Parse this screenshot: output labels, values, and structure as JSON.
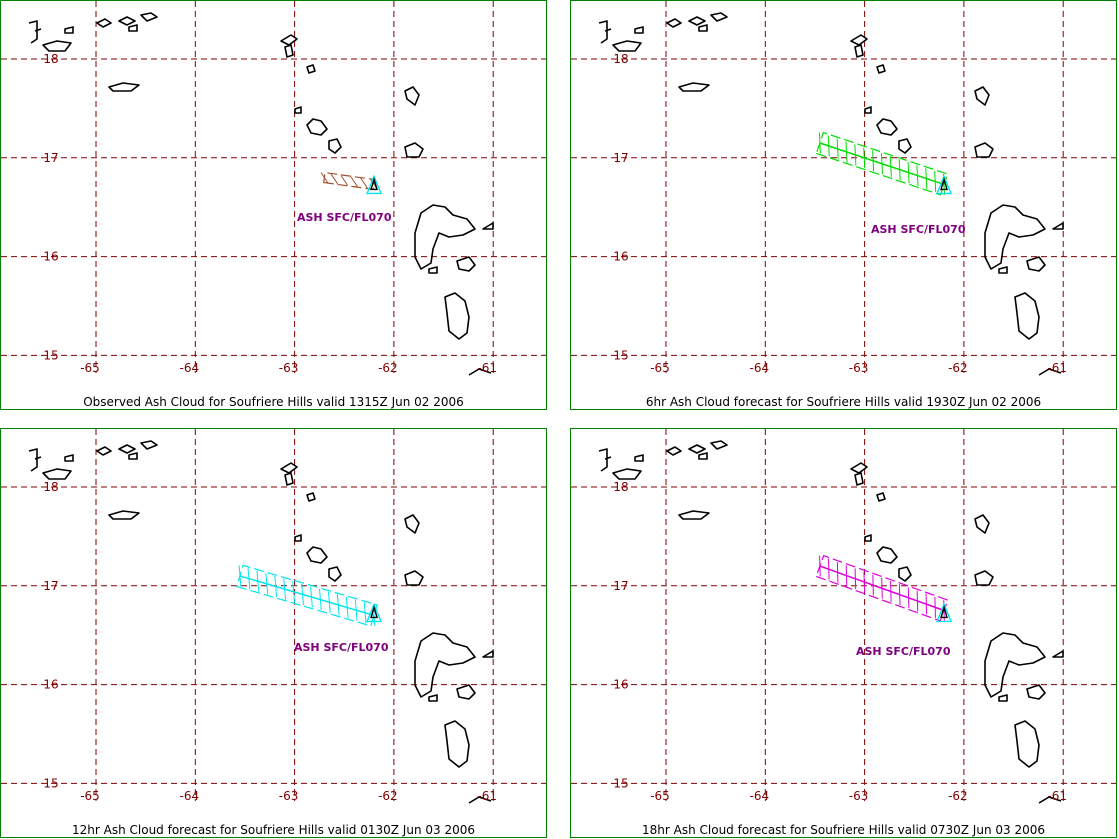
{
  "grid": {
    "lon_labels": [
      "-65",
      "-64",
      "-63",
      "-62",
      "-61"
    ],
    "lat_labels": [
      "18",
      "17",
      "16",
      "15"
    ],
    "grid_color": "#800000",
    "border_color": "#008000"
  },
  "panels": [
    {
      "caption": "Observed Ash Cloud for Soufriere  Hills valid 1315Z Jun 02 2006",
      "label": "ASH SFC/FL070",
      "label_color": "#800080",
      "cloud_color": "#a0522d",
      "cloud_lon_start": -62.7,
      "cloud_lat_start": 16.8,
      "cloud_lon_end": -62.2,
      "cloud_lat_end": 16.73
    },
    {
      "caption": "6hr Ash Cloud forecast for Soufriere  Hills valid 1930Z Jun 02 2006",
      "label": "ASH SFC/FL070",
      "label_color": "#800080",
      "cloud_color": "#00dd00",
      "cloud_lon_start": -63.45,
      "cloud_lat_start": 17.15,
      "cloud_lon_end": -62.2,
      "cloud_lat_end": 16.73
    },
    {
      "caption": "12hr Ash Cloud forecast for Soufriere  Hills valid 0130Z Jun 03 2006",
      "label": "ASH SFC/FL070",
      "label_color": "#800080",
      "cloud_color": "#00e5ee",
      "cloud_lon_start": -63.55,
      "cloud_lat_start": 17.1,
      "cloud_lon_end": -62.2,
      "cloud_lat_end": 16.7
    },
    {
      "caption": "18hr Ash Cloud forecast for Soufriere  Hills valid 0730Z Jun 03 2006",
      "label": "ASH SFC/FL070",
      "label_color": "#800080",
      "cloud_color": "#dd00dd",
      "cloud_lon_start": -63.45,
      "cloud_lat_start": 17.2,
      "cloud_lon_end": -62.2,
      "cloud_lat_end": 16.75
    }
  ]
}
